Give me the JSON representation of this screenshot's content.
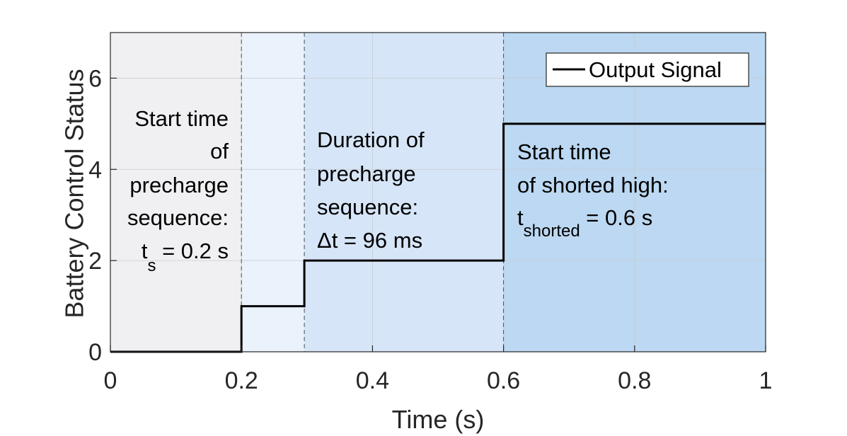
{
  "chart_data": {
    "type": "line",
    "title": "",
    "xlabel": "Time (s)",
    "ylabel": "Battery Control Status",
    "xlim": [
      0,
      1
    ],
    "ylim": [
      0,
      7
    ],
    "xticks": [
      "0",
      "0.2",
      "0.4",
      "0.6",
      "0.8",
      "1"
    ],
    "yticks": [
      "0",
      "2",
      "4",
      "6"
    ],
    "grid": true,
    "legend": {
      "placement": "top-right",
      "entries": [
        "Output Signal"
      ]
    },
    "series": [
      {
        "name": "Output Signal",
        "style": "step",
        "color": "#000000",
        "points": [
          [
            0,
            0
          ],
          [
            0.2,
            0
          ],
          [
            0.2,
            1
          ],
          [
            0.296,
            1
          ],
          [
            0.296,
            2
          ],
          [
            0.6,
            2
          ],
          [
            0.6,
            5
          ],
          [
            1,
            5
          ]
        ]
      }
    ],
    "regions": [
      {
        "x0": 0,
        "x1": 0.2,
        "color": "#f0f0f2"
      },
      {
        "x0": 0.2,
        "x1": 0.296,
        "color": "#eaf2fc"
      },
      {
        "x0": 0.296,
        "x1": 0.6,
        "color": "#d6e5f7"
      },
      {
        "x0": 0.6,
        "x1": 1,
        "color": "#bcd8f2"
      }
    ],
    "vlines": [
      0.2,
      0.296,
      0.6
    ],
    "annotations": {
      "start_precharge": {
        "lines": [
          "Start time",
          "of",
          "precharge",
          "sequence:"
        ],
        "formula_sym": "t",
        "formula_sub": "s",
        "formula_rest": " = 0.2 s"
      },
      "duration_precharge": {
        "lines": [
          "Duration of",
          "precharge",
          "sequence:",
          "Δt = 96 ms"
        ]
      },
      "start_shorted": {
        "lines": [
          "Start time",
          "of shorted high:"
        ],
        "formula_sym": "t",
        "formula_sub": "shorted",
        "formula_rest": " = 0.6 s"
      }
    }
  }
}
